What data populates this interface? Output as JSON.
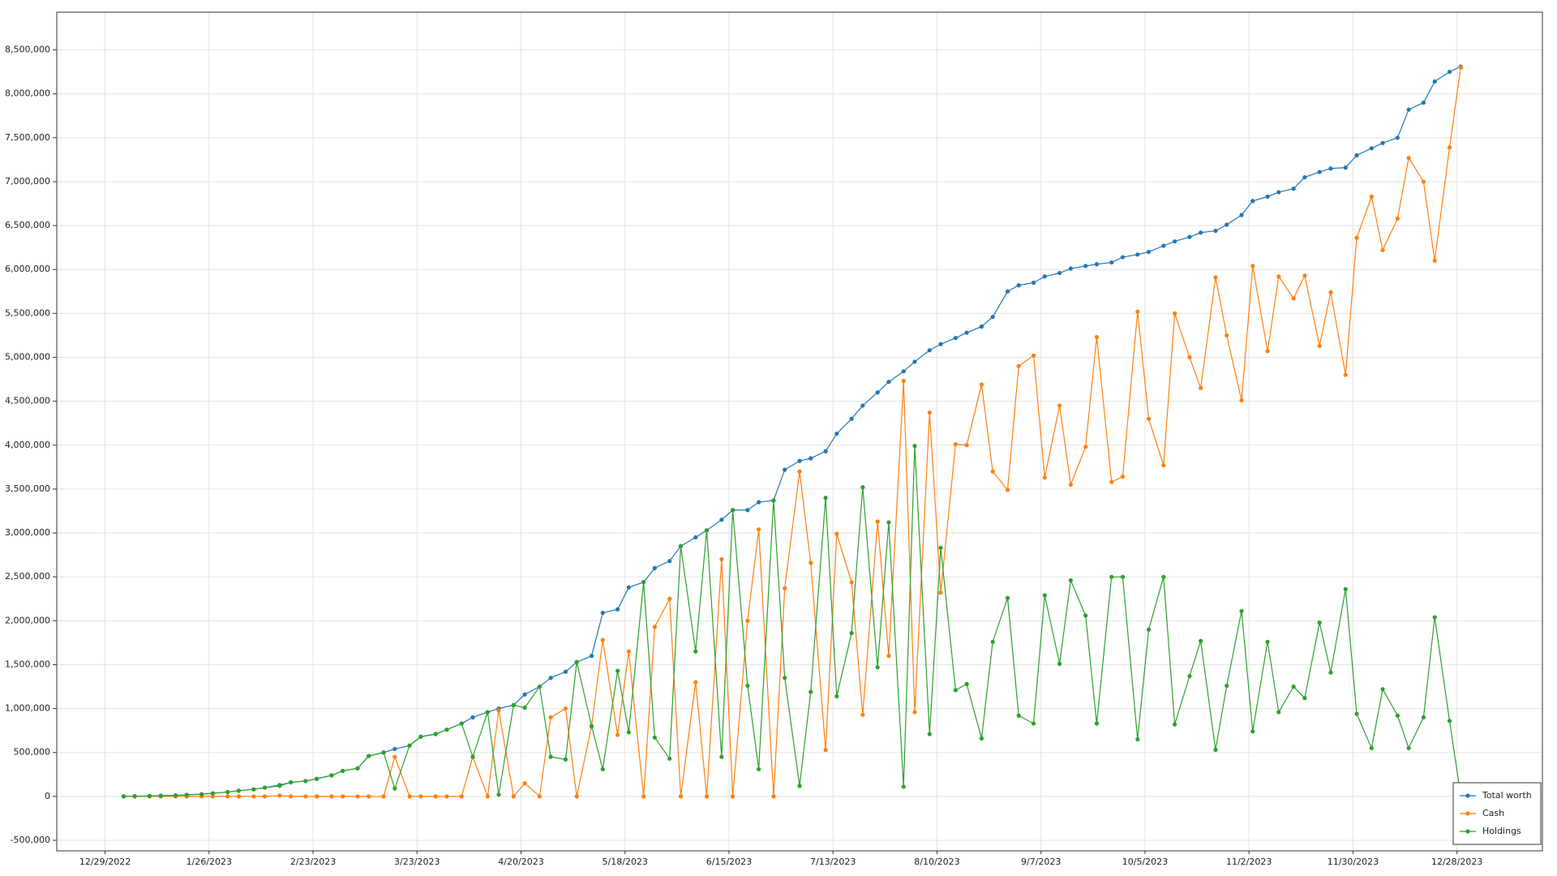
{
  "chart_data": {
    "type": "line",
    "x": [
      "2023-01-03",
      "2023-01-06",
      "2023-01-10",
      "2023-01-13",
      "2023-01-17",
      "2023-01-20",
      "2023-01-24",
      "2023-01-27",
      "2023-01-31",
      "2023-02-03",
      "2023-02-07",
      "2023-02-10",
      "2023-02-14",
      "2023-02-17",
      "2023-02-21",
      "2023-02-24",
      "2023-02-28",
      "2023-03-03",
      "2023-03-07",
      "2023-03-10",
      "2023-03-14",
      "2023-03-17",
      "2023-03-21",
      "2023-03-24",
      "2023-03-28",
      "2023-03-31",
      "2023-04-04",
      "2023-04-07",
      "2023-04-11",
      "2023-04-14",
      "2023-04-18",
      "2023-04-21",
      "2023-04-25",
      "2023-04-28",
      "2023-05-02",
      "2023-05-05",
      "2023-05-09",
      "2023-05-12",
      "2023-05-16",
      "2023-05-19",
      "2023-05-23",
      "2023-05-26",
      "2023-05-30",
      "2023-06-02",
      "2023-06-06",
      "2023-06-09",
      "2023-06-13",
      "2023-06-16",
      "2023-06-20",
      "2023-06-23",
      "2023-06-27",
      "2023-06-30",
      "2023-07-04",
      "2023-07-07",
      "2023-07-11",
      "2023-07-14",
      "2023-07-18",
      "2023-07-21",
      "2023-07-25",
      "2023-07-28",
      "2023-08-01",
      "2023-08-04",
      "2023-08-08",
      "2023-08-11",
      "2023-08-15",
      "2023-08-18",
      "2023-08-22",
      "2023-08-25",
      "2023-08-29",
      "2023-09-01",
      "2023-09-05",
      "2023-09-08",
      "2023-09-12",
      "2023-09-15",
      "2023-09-19",
      "2023-09-22",
      "2023-09-26",
      "2023-09-29",
      "2023-10-03",
      "2023-10-06",
      "2023-10-10",
      "2023-10-13",
      "2023-10-17",
      "2023-10-20",
      "2023-10-24",
      "2023-10-27",
      "2023-10-31",
      "2023-11-03",
      "2023-11-07",
      "2023-11-10",
      "2023-11-14",
      "2023-11-17",
      "2023-11-21",
      "2023-11-24",
      "2023-11-28",
      "2023-12-01",
      "2023-12-05",
      "2023-12-08",
      "2023-12-12",
      "2023-12-15",
      "2023-12-19",
      "2023-12-22",
      "2023-12-26",
      "2023-12-29"
    ],
    "series": [
      {
        "name": "Total worth",
        "color": "#1f77b4",
        "values": [
          0,
          2000,
          5000,
          8000,
          12000,
          18000,
          25000,
          35000,
          50000,
          65000,
          80000,
          100000,
          130000,
          160000,
          175000,
          200000,
          240000,
          290000,
          320000,
          460000,
          500000,
          540000,
          580000,
          680000,
          710000,
          760000,
          830000,
          900000,
          960000,
          1000000,
          1040000,
          1160000,
          1250000,
          1350000,
          1420000,
          1530000,
          1600000,
          2090000,
          2130000,
          2380000,
          2440000,
          2600000,
          2680000,
          2850000,
          2950000,
          3030000,
          3150000,
          3260000,
          3260000,
          3350000,
          3370000,
          3720000,
          3820000,
          3850000,
          3930000,
          4130000,
          4300000,
          4450000,
          4600000,
          4720000,
          4840000,
          4950000,
          5080000,
          5150000,
          5220000,
          5280000,
          5350000,
          5460000,
          5750000,
          5820000,
          5850000,
          5920000,
          5960000,
          6010000,
          6040000,
          6060000,
          6080000,
          6140000,
          6170000,
          6200000,
          6270000,
          6320000,
          6370000,
          6420000,
          6440000,
          6510000,
          6620000,
          6780000,
          6830000,
          6880000,
          6920000,
          7050000,
          7110000,
          7150000,
          7160000,
          7300000,
          7380000,
          7440000,
          7500000,
          7820000,
          7900000,
          8140000,
          8250000,
          8310000
        ]
      },
      {
        "name": "Cash",
        "color": "#ff7f0e",
        "values": [
          0,
          0,
          0,
          0,
          0,
          0,
          0,
          0,
          0,
          0,
          0,
          0,
          10000,
          0,
          0,
          0,
          0,
          0,
          0,
          0,
          0,
          450000,
          0,
          0,
          0,
          0,
          0,
          450000,
          0,
          980000,
          0,
          150000,
          0,
          900000,
          1000000,
          0,
          800000,
          1780000,
          700000,
          1650000,
          0,
          1930000,
          2250000,
          0,
          1300000,
          0,
          2700000,
          0,
          2000000,
          3040000,
          0,
          2370000,
          3700000,
          2660000,
          530000,
          2990000,
          2440000,
          930000,
          3130000,
          1600000,
          4730000,
          960000,
          4370000,
          2320000,
          4010000,
          4000000,
          4690000,
          3700000,
          3490000,
          4900000,
          5020000,
          3630000,
          4450000,
          3550000,
          3980000,
          5230000,
          3580000,
          3640000,
          5520000,
          4300000,
          3770000,
          5500000,
          5000000,
          4650000,
          5910000,
          5250000,
          4510000,
          6040000,
          5070000,
          5920000,
          5670000,
          5930000,
          5130000,
          5740000,
          4800000,
          6360000,
          6830000,
          6220000,
          6580000,
          7270000,
          7000000,
          6100000,
          7390000,
          8300000
        ]
      },
      {
        "name": "Holdings",
        "color": "#2ca02c",
        "values": [
          0,
          2000,
          5000,
          8000,
          12000,
          18000,
          25000,
          35000,
          50000,
          65000,
          80000,
          100000,
          120000,
          160000,
          175000,
          200000,
          240000,
          290000,
          320000,
          460000,
          500000,
          90000,
          580000,
          680000,
          710000,
          760000,
          830000,
          450000,
          960000,
          20000,
          1040000,
          1010000,
          1250000,
          450000,
          420000,
          1530000,
          800000,
          310000,
          1430000,
          730000,
          2440000,
          670000,
          430000,
          2850000,
          1650000,
          3030000,
          450000,
          3260000,
          1260000,
          310000,
          3370000,
          1350000,
          120000,
          1190000,
          3400000,
          1140000,
          1860000,
          3520000,
          1470000,
          3120000,
          110000,
          3990000,
          710000,
          2830000,
          1210000,
          1280000,
          660000,
          1760000,
          2260000,
          920000,
          830000,
          2290000,
          1510000,
          2460000,
          2060000,
          830000,
          2500000,
          2500000,
          650000,
          1900000,
          2500000,
          820000,
          1370000,
          1770000,
          530000,
          1260000,
          2110000,
          740000,
          1760000,
          960000,
          1250000,
          1120000,
          1980000,
          1410000,
          2360000,
          940000,
          550000,
          1220000,
          920000,
          550000,
          900000,
          2040000,
          860000,
          10000
        ]
      }
    ],
    "xlim": [
      "2022-12-16",
      "2024-01-20"
    ],
    "xticks": [
      {
        "value": "2022-12-29",
        "label": "12/29/2022"
      },
      {
        "value": "2023-01-26",
        "label": "1/26/2023"
      },
      {
        "value": "2023-02-23",
        "label": "2/23/2023"
      },
      {
        "value": "2023-03-23",
        "label": "3/23/2023"
      },
      {
        "value": "2023-04-20",
        "label": "4/20/2023"
      },
      {
        "value": "2023-05-18",
        "label": "5/18/2023"
      },
      {
        "value": "2023-06-15",
        "label": "6/15/2023"
      },
      {
        "value": "2023-07-13",
        "label": "7/13/2023"
      },
      {
        "value": "2023-08-10",
        "label": "8/10/2023"
      },
      {
        "value": "2023-09-07",
        "label": "9/7/2023"
      },
      {
        "value": "2023-10-05",
        "label": "10/5/2023"
      },
      {
        "value": "2023-11-02",
        "label": "11/2/2023"
      },
      {
        "value": "2023-11-30",
        "label": "11/30/2023"
      },
      {
        "value": "2023-12-28",
        "label": "12/28/2023"
      }
    ],
    "ylim": [
      -620000,
      8930000
    ],
    "yticks": [
      {
        "value": -500000,
        "label": "-500,000"
      },
      0,
      {
        "value": 500000,
        "label": "500,000"
      },
      {
        "value": 1000000,
        "label": "1,000,000"
      },
      {
        "value": 1500000,
        "label": "1,500,000"
      },
      {
        "value": 2000000,
        "label": "2,000,000"
      },
      {
        "value": 2500000,
        "label": "2,500,000"
      },
      {
        "value": 3000000,
        "label": "3,000,000"
      },
      {
        "value": 3500000,
        "label": "3,500,000"
      },
      {
        "value": 4000000,
        "label": "4,000,000"
      },
      {
        "value": 4500000,
        "label": "4,500,000"
      },
      {
        "value": 5000000,
        "label": "5,000,000"
      },
      {
        "value": 5500000,
        "label": "5,500,000"
      },
      {
        "value": 6000000,
        "label": "6,000,000"
      },
      {
        "value": 6500000,
        "label": "6,500,000"
      },
      {
        "value": 7000000,
        "label": "7,000,000"
      },
      {
        "value": 7500000,
        "label": "7,500,000"
      },
      {
        "value": 8000000,
        "label": "8,000,000"
      },
      {
        "value": 8500000,
        "label": "8,500,000"
      }
    ],
    "grid": true,
    "legend": "lower right"
  }
}
